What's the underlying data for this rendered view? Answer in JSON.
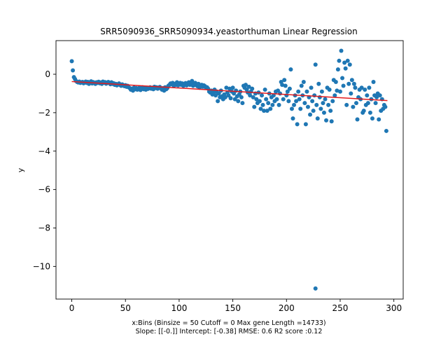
{
  "chart_data": {
    "type": "scatter",
    "title": "SRR5090936_SRR5090934.yeastorthuman Linear Regression",
    "xlabel": "x:Bins  (Binsize = 50 Cutoff = 0 Max gene Length =14733)",
    "xlabel_line2": "Slope: [[-0.]] Intercept: [-0.38] RMSE: 0.6 R2 score :0.12",
    "ylabel": "y",
    "xlim": [
      -14.7,
      308.7
    ],
    "ylim": [
      -11.7,
      1.75
    ],
    "xticks": [
      0,
      50,
      100,
      150,
      200,
      250,
      300
    ],
    "yticks": [
      -10,
      -8,
      -6,
      -4,
      -2,
      0
    ],
    "ytick_labels": [
      "−10",
      "−8",
      "−6",
      "−4",
      "−2",
      "0"
    ],
    "grid": false,
    "colors": {
      "points": "#1f77b4",
      "regression": "#e31a1c"
    },
    "regression_line": {
      "x": [
        0,
        294
      ],
      "y": [
        -0.38,
        -1.37
      ]
    },
    "series": [
      {
        "values_xy": [
          [
            0,
            0.68
          ],
          [
            1,
            0.2
          ],
          [
            2,
            -0.15
          ],
          [
            3,
            -0.25
          ],
          [
            4,
            -0.35
          ],
          [
            5,
            -0.4
          ],
          [
            6,
            -0.43
          ],
          [
            7,
            -0.38
          ],
          [
            8,
            -0.45
          ],
          [
            9,
            -0.42
          ],
          [
            10,
            -0.4
          ],
          [
            11,
            -0.47
          ],
          [
            12,
            -0.43
          ],
          [
            13,
            -0.38
          ],
          [
            14,
            -0.45
          ],
          [
            15,
            -0.4
          ],
          [
            16,
            -0.5
          ],
          [
            17,
            -0.44
          ],
          [
            18,
            -0.37
          ],
          [
            19,
            -0.48
          ],
          [
            20,
            -0.41
          ],
          [
            21,
            -0.46
          ],
          [
            22,
            -0.5
          ],
          [
            23,
            -0.42
          ],
          [
            24,
            -0.45
          ],
          [
            25,
            -0.39
          ],
          [
            26,
            -0.47
          ],
          [
            27,
            -0.43
          ],
          [
            28,
            -0.5
          ],
          [
            29,
            -0.38
          ],
          [
            30,
            -0.44
          ],
          [
            31,
            -0.41
          ],
          [
            32,
            -0.49
          ],
          [
            33,
            -0.45
          ],
          [
            34,
            -0.4
          ],
          [
            35,
            -0.46
          ],
          [
            36,
            -0.52
          ],
          [
            37,
            -0.42
          ],
          [
            38,
            -0.5
          ],
          [
            39,
            -0.47
          ],
          [
            40,
            -0.55
          ],
          [
            41,
            -0.5
          ],
          [
            42,
            -0.58
          ],
          [
            43,
            -0.52
          ],
          [
            44,
            -0.48
          ],
          [
            45,
            -0.56
          ],
          [
            46,
            -0.6
          ],
          [
            47,
            -0.53
          ],
          [
            48,
            -0.58
          ],
          [
            49,
            -0.62
          ],
          [
            50,
            -0.57
          ],
          [
            51,
            -0.65
          ],
          [
            52,
            -0.6
          ],
          [
            53,
            -0.68
          ],
          [
            54,
            -0.72
          ],
          [
            55,
            -0.8
          ],
          [
            56,
            -0.75
          ],
          [
            57,
            -0.85
          ],
          [
            58,
            -0.7
          ],
          [
            59,
            -0.78
          ],
          [
            60,
            -0.72
          ],
          [
            61,
            -0.8
          ],
          [
            62,
            -0.76
          ],
          [
            63,
            -0.7
          ],
          [
            64,
            -0.82
          ],
          [
            65,
            -0.75
          ],
          [
            66,
            -0.68
          ],
          [
            67,
            -0.78
          ],
          [
            68,
            -0.73
          ],
          [
            69,
            -0.8
          ],
          [
            70,
            -0.7
          ],
          [
            71,
            -0.76
          ],
          [
            72,
            -0.72
          ],
          [
            73,
            -0.68
          ],
          [
            74,
            -0.75
          ],
          [
            75,
            -0.7
          ],
          [
            76,
            -0.78
          ],
          [
            77,
            -0.65
          ],
          [
            78,
            -0.72
          ],
          [
            79,
            -0.68
          ],
          [
            80,
            -0.75
          ],
          [
            81,
            -0.7
          ],
          [
            82,
            -0.66
          ],
          [
            83,
            -0.74
          ],
          [
            84,
            -0.8
          ],
          [
            85,
            -0.72
          ],
          [
            86,
            -0.85
          ],
          [
            87,
            -0.68
          ],
          [
            88,
            -0.78
          ],
          [
            89,
            -0.72
          ],
          [
            90,
            -0.6
          ],
          [
            91,
            -0.55
          ],
          [
            92,
            -0.48
          ],
          [
            93,
            -0.52
          ],
          [
            94,
            -0.45
          ],
          [
            95,
            -0.6
          ],
          [
            96,
            -0.5
          ],
          [
            97,
            -0.55
          ],
          [
            98,
            -0.42
          ],
          [
            99,
            -0.58
          ],
          [
            100,
            -0.5
          ],
          [
            101,
            -0.45
          ],
          [
            102,
            -0.55
          ],
          [
            103,
            -0.48
          ],
          [
            104,
            -0.6
          ],
          [
            105,
            -0.52
          ],
          [
            106,
            -0.46
          ],
          [
            107,
            -0.58
          ],
          [
            108,
            -0.5
          ],
          [
            109,
            -0.42
          ],
          [
            110,
            -0.55
          ],
          [
            111,
            -0.48
          ],
          [
            112,
            -0.35
          ],
          [
            113,
            -0.6
          ],
          [
            114,
            -0.52
          ],
          [
            115,
            -0.45
          ],
          [
            116,
            -0.57
          ],
          [
            117,
            -0.62
          ],
          [
            118,
            -0.5
          ],
          [
            119,
            -0.7
          ],
          [
            120,
            -0.6
          ],
          [
            121,
            -0.55
          ],
          [
            122,
            -0.65
          ],
          [
            123,
            -0.58
          ],
          [
            124,
            -0.62
          ],
          [
            125,
            -0.7
          ],
          [
            126,
            -0.68
          ],
          [
            127,
            -0.75
          ],
          [
            128,
            -0.9
          ],
          [
            129,
            -0.95
          ],
          [
            130,
            -0.85
          ],
          [
            131,
            -1.05
          ],
          [
            132,
            -0.95
          ],
          [
            133,
            -0.8
          ],
          [
            134,
            -1.1
          ],
          [
            135,
            -0.9
          ],
          [
            136,
            -1.4
          ],
          [
            137,
            -1.0
          ],
          [
            138,
            -1.2
          ],
          [
            139,
            -0.85
          ],
          [
            140,
            -1.15
          ],
          [
            141,
            -1.3
          ],
          [
            142,
            -1.05
          ],
          [
            143,
            -1.2
          ],
          [
            144,
            -0.7
          ],
          [
            145,
            -0.95
          ],
          [
            146,
            -1.1
          ],
          [
            147,
            -0.75
          ],
          [
            148,
            -1.25
          ],
          [
            149,
            -0.9
          ],
          [
            150,
            -0.7
          ],
          [
            151,
            -1.0
          ],
          [
            152,
            -1.3
          ],
          [
            153,
            -0.85
          ],
          [
            154,
            -1.15
          ],
          [
            155,
            -1.4
          ],
          [
            156,
            -1.05
          ],
          [
            157,
            -0.9
          ],
          [
            158,
            -1.2
          ],
          [
            159,
            -1.5
          ],
          [
            160,
            -0.6
          ],
          [
            161,
            -0.7
          ],
          [
            162,
            -0.55
          ],
          [
            163,
            -0.8
          ],
          [
            164,
            -0.95
          ],
          [
            165,
            -0.65
          ],
          [
            166,
            -1.1
          ],
          [
            167,
            -0.9
          ],
          [
            168,
            -0.75
          ],
          [
            169,
            -1.2
          ],
          [
            170,
            -1.7
          ],
          [
            171,
            -1.0
          ],
          [
            172,
            -1.3
          ],
          [
            173,
            -1.5
          ],
          [
            174,
            -0.95
          ],
          [
            175,
            -1.4
          ],
          [
            176,
            -1.8
          ],
          [
            177,
            -1.1
          ],
          [
            178,
            -1.6
          ],
          [
            179,
            -1.9
          ],
          [
            180,
            -0.8
          ],
          [
            181,
            -1.3
          ],
          [
            182,
            -1.9
          ],
          [
            183,
            -1.5
          ],
          [
            184,
            -1.0
          ],
          [
            185,
            -1.8
          ],
          [
            186,
            -1.2
          ],
          [
            187,
            -1.6
          ],
          [
            188,
            -1.1
          ],
          [
            189,
            -1.4
          ],
          [
            190,
            -0.9
          ],
          [
            191,
            -1.3
          ],
          [
            192,
            -0.85
          ],
          [
            193,
            -1.6
          ],
          [
            194,
            -1.0
          ],
          [
            195,
            -0.4
          ],
          [
            196,
            -0.55
          ],
          [
            197,
            -1.3
          ],
          [
            198,
            -0.3
          ],
          [
            199,
            -0.6
          ],
          [
            200,
            -1.1
          ],
          [
            201,
            -0.9
          ],
          [
            202,
            -1.4
          ],
          [
            203,
            -0.75
          ],
          [
            204,
            0.25
          ],
          [
            205,
            -1.8
          ],
          [
            206,
            -2.3
          ],
          [
            207,
            -1.6
          ],
          [
            208,
            -1.1
          ],
          [
            209,
            -1.4
          ],
          [
            210,
            -2.6
          ],
          [
            211,
            -0.9
          ],
          [
            212,
            -1.3
          ],
          [
            213,
            -1.8
          ],
          [
            214,
            -0.6
          ],
          [
            215,
            -1.1
          ],
          [
            216,
            -0.4
          ],
          [
            217,
            -1.5
          ],
          [
            218,
            -2.6
          ],
          [
            219,
            -0.9
          ],
          [
            220,
            -1.7
          ],
          [
            221,
            -1.2
          ],
          [
            222,
            -2.1
          ],
          [
            223,
            -0.7
          ],
          [
            224,
            -1.4
          ],
          [
            225,
            -1.9
          ],
          [
            226,
            -1.1
          ],
          [
            227,
            0.5
          ],
          [
            227,
            -11.15
          ],
          [
            228,
            -1.6
          ],
          [
            229,
            -2.3
          ],
          [
            230,
            -0.5
          ],
          [
            231,
            -1.2
          ],
          [
            232,
            -1.8
          ],
          [
            233,
            -0.9
          ],
          [
            234,
            -1.5
          ],
          [
            235,
            -2.0
          ],
          [
            236,
            -1.3
          ],
          [
            237,
            -2.4
          ],
          [
            238,
            -0.7
          ],
          [
            239,
            -1.6
          ],
          [
            240,
            -0.8
          ],
          [
            241,
            -1.9
          ],
          [
            242,
            -2.45
          ],
          [
            243,
            -1.4
          ],
          [
            244,
            -0.3
          ],
          [
            245,
            -1.1
          ],
          [
            246,
            -0.4
          ],
          [
            247,
            -0.85
          ],
          [
            248,
            0.25
          ],
          [
            249,
            0.7
          ],
          [
            250,
            -0.9
          ],
          [
            251,
            1.22
          ],
          [
            252,
            -0.2
          ],
          [
            253,
            -0.6
          ],
          [
            254,
            0.6
          ],
          [
            255,
            0.3
          ],
          [
            256,
            -1.6
          ],
          [
            257,
            0.7
          ],
          [
            258,
            -0.5
          ],
          [
            259,
            0.5
          ],
          [
            260,
            -1.0
          ],
          [
            261,
            -0.3
          ],
          [
            262,
            -1.7
          ],
          [
            263,
            -0.5
          ],
          [
            264,
            -0.7
          ],
          [
            265,
            -1.5
          ],
          [
            266,
            -2.35
          ],
          [
            267,
            -1.2
          ],
          [
            268,
            -0.8
          ],
          [
            269,
            -1.3
          ],
          [
            270,
            -0.7
          ],
          [
            271,
            -2.0
          ],
          [
            272,
            -1.9
          ],
          [
            273,
            -0.8
          ],
          [
            274,
            -1.6
          ],
          [
            275,
            -1.1
          ],
          [
            276,
            -1.5
          ],
          [
            277,
            -0.7
          ],
          [
            278,
            -2.0
          ],
          [
            279,
            -1.3
          ],
          [
            280,
            -2.3
          ],
          [
            281,
            -0.4
          ],
          [
            282,
            -1.1
          ],
          [
            283,
            -1.5
          ],
          [
            284,
            -1.2
          ],
          [
            285,
            -1.0
          ],
          [
            286,
            -2.35
          ],
          [
            287,
            -1.1
          ],
          [
            288,
            -1.9
          ],
          [
            289,
            -1.3
          ],
          [
            290,
            -1.8
          ],
          [
            291,
            -1.6
          ],
          [
            292,
            -1.7
          ],
          [
            293,
            -2.95
          ]
        ]
      }
    ]
  }
}
